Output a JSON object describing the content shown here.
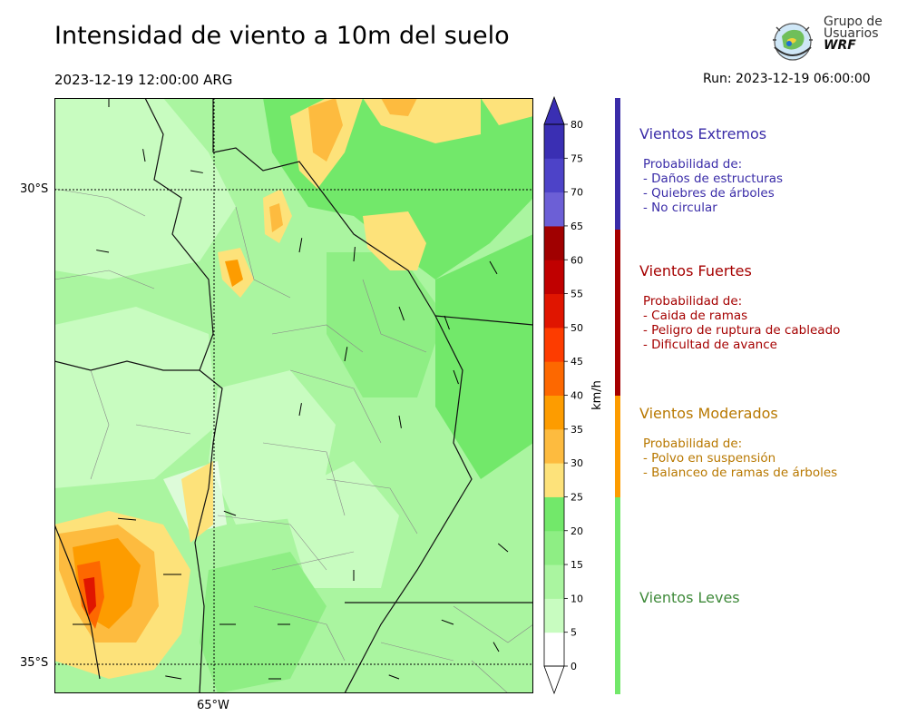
{
  "header": {
    "title": "Intensidad de viento a 10m del suelo",
    "valid_time": "2023-12-19 12:00:00 ARG",
    "run": "Run: 2023-12-19 06:00:00"
  },
  "logo": {
    "line1": "Grupo de",
    "line2": "Usuarios",
    "line3": "WRF"
  },
  "axes": {
    "lat_labels": [
      "30°S",
      "35°S"
    ],
    "lon_labels": [
      "65°W"
    ]
  },
  "colorbar": {
    "unit": "km/h",
    "ticks": [
      "0",
      "5",
      "10",
      "15",
      "20",
      "25",
      "30",
      "35",
      "40",
      "45",
      "50",
      "55",
      "60",
      "65",
      "70",
      "75",
      "80"
    ],
    "colors": [
      "#ffffff",
      "#c8fcc0",
      "#aaf5a0",
      "#8eee84",
      "#72e86a",
      "#fde27a",
      "#fdbb3f",
      "#fd9c00",
      "#fd6800",
      "#fd3c00",
      "#e01500",
      "#c00000",
      "#a00000",
      "#6c5fd6",
      "#4d43c8",
      "#3a2fb3",
      "#3a2fb3"
    ]
  },
  "categories": [
    {
      "title": "Vientos Extremos",
      "color": "#3a2ca8",
      "lines": [
        "Probabilidad de:",
        "- Daños de estructuras",
        "- Quiebres de árboles",
        "- No circular"
      ]
    },
    {
      "title": "Vientos Fuertes",
      "color": "#a50000",
      "lines": [
        "Probabilidad de:",
        "- Caida de ramas",
        "- Peligro de ruptura de cableado",
        "- Dificultad de avance"
      ]
    },
    {
      "title": "Vientos Moderados",
      "color": "#b87800",
      "lines": [
        "Probabilidad de:",
        "- Polvo en suspensión",
        "- Balanceo de ramas de árboles"
      ]
    },
    {
      "title": "Vientos Leves",
      "color": "#3f8a3a",
      "lines": []
    }
  ]
}
